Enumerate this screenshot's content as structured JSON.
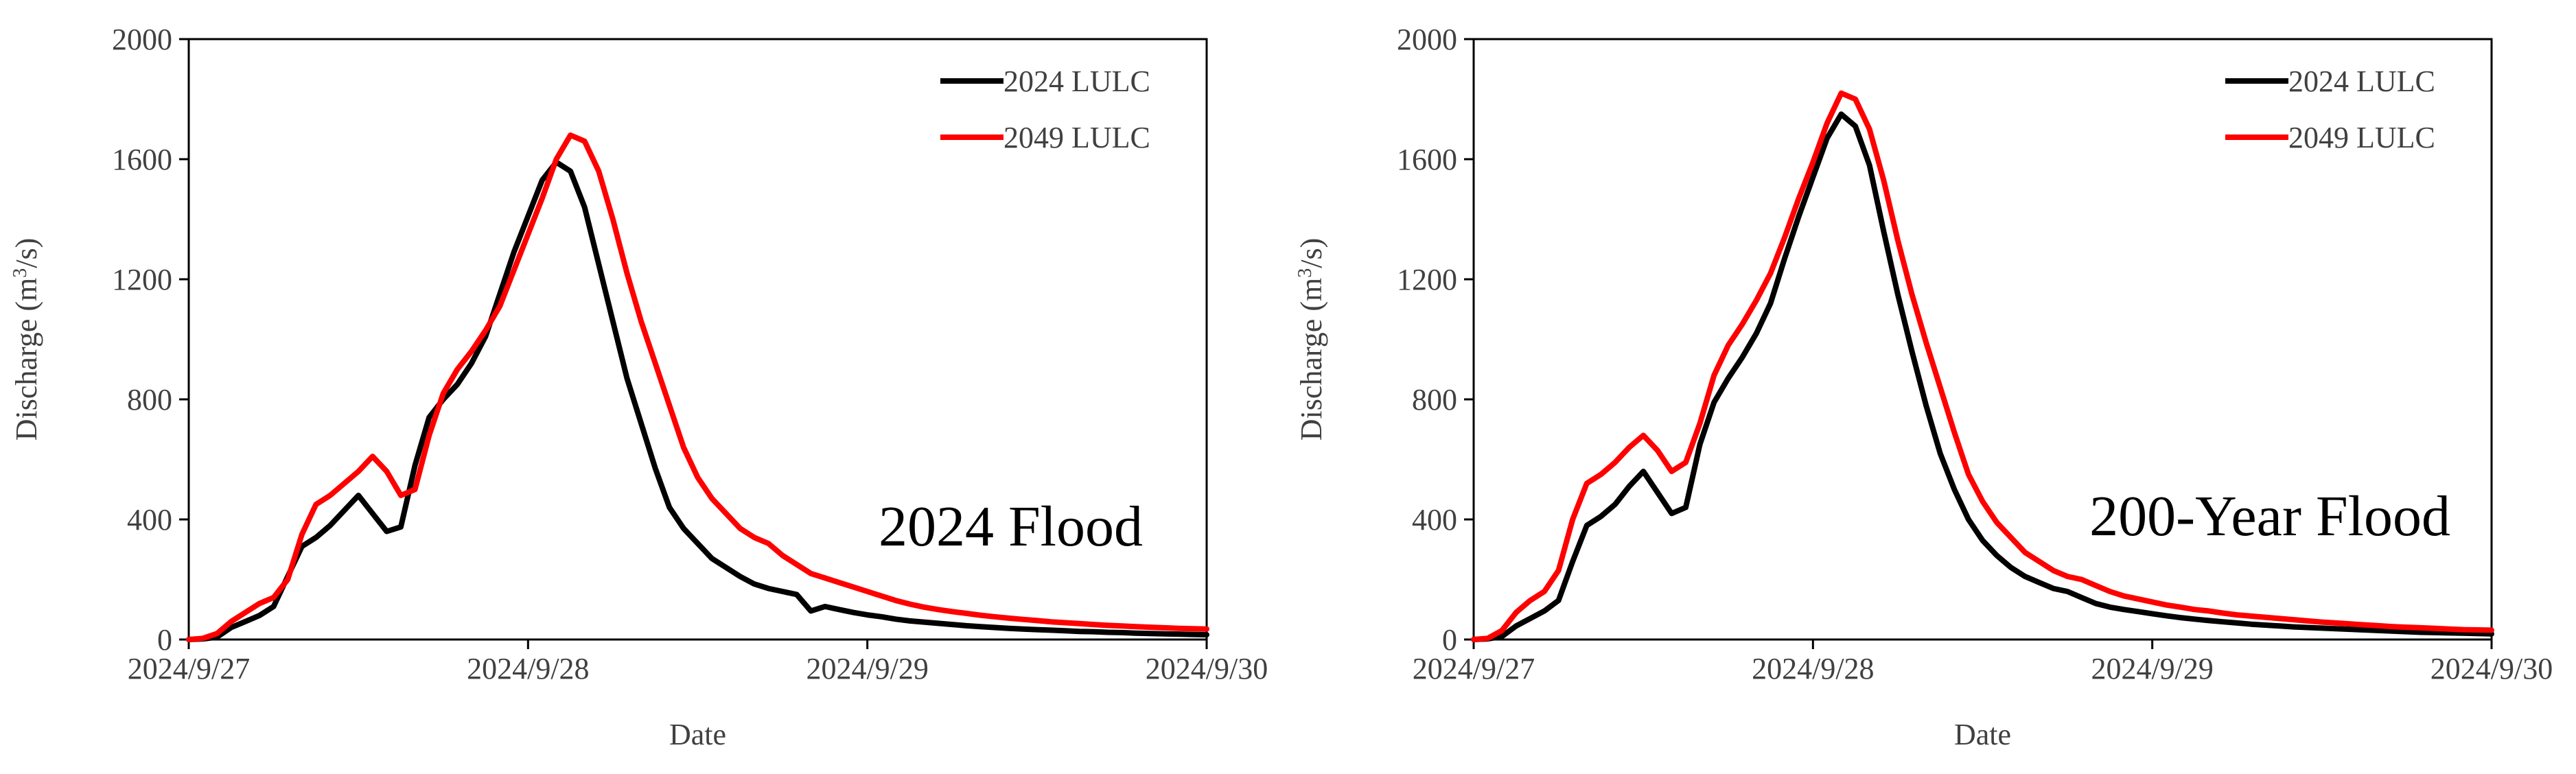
{
  "chart_data": [
    {
      "type": "line",
      "title": "",
      "annotation": "2024 Flood",
      "xlabel": "Date",
      "ylabel_main": "Discharge (m",
      "ylabel_sup": "3",
      "ylabel_end": "/s)",
      "xlim": [
        0,
        72
      ],
      "ylim": [
        0,
        2000
      ],
      "yticks": [
        0,
        400,
        800,
        1200,
        1600,
        2000
      ],
      "ytick_labels": [
        "0",
        "400",
        "800",
        "1200",
        "1600",
        "2000"
      ],
      "xticks": [
        0,
        24,
        48,
        72
      ],
      "xtick_labels": [
        "2024/9/27",
        "2024/9/28",
        "2024/9/29",
        "2024/9/30"
      ],
      "legend_position": "top-right",
      "x_hours": [
        0,
        1,
        2,
        3,
        4,
        5,
        6,
        7,
        8,
        9,
        10,
        11,
        12,
        13,
        14,
        15,
        16,
        17,
        18,
        19,
        20,
        21,
        22,
        23,
        24,
        25,
        26,
        27,
        28,
        29,
        30,
        31,
        32,
        33,
        34,
        35,
        36,
        37,
        38,
        39,
        40,
        41,
        42,
        43,
        44,
        45,
        46,
        47,
        48,
        49,
        50,
        51,
        52,
        53,
        54,
        55,
        56,
        57,
        58,
        59,
        60,
        61,
        62,
        63,
        64,
        65,
        66,
        67,
        68,
        69,
        70,
        71,
        72
      ],
      "series": [
        {
          "name": "2024 LULC",
          "color": "#000000",
          "values": [
            0,
            2,
            8,
            40,
            60,
            80,
            110,
            210,
            310,
            340,
            380,
            430,
            480,
            420,
            360,
            375,
            580,
            740,
            800,
            850,
            920,
            1010,
            1150,
            1290,
            1410,
            1530,
            1590,
            1560,
            1440,
            1250,
            1060,
            870,
            720,
            570,
            440,
            370,
            320,
            270,
            240,
            210,
            185,
            170,
            160,
            150,
            95,
            110,
            100,
            90,
            82,
            76,
            68,
            62,
            58,
            54,
            50,
            46,
            43,
            40,
            37,
            35,
            33,
            31,
            29,
            27,
            26,
            24,
            23,
            21,
            20,
            19,
            18,
            17,
            16
          ]
        },
        {
          "name": "2049 LULC",
          "color": "#ff0000",
          "values": [
            0,
            4,
            20,
            60,
            90,
            120,
            140,
            200,
            350,
            450,
            480,
            520,
            560,
            610,
            560,
            480,
            500,
            680,
            820,
            900,
            960,
            1030,
            1110,
            1230,
            1350,
            1470,
            1600,
            1680,
            1660,
            1560,
            1400,
            1220,
            1060,
            920,
            780,
            640,
            540,
            470,
            420,
            370,
            340,
            320,
            280,
            250,
            220,
            205,
            190,
            175,
            160,
            145,
            130,
            118,
            108,
            100,
            93,
            87,
            81,
            76,
            71,
            67,
            63,
            59,
            56,
            53,
            50,
            47,
            45,
            43,
            41,
            39,
            37,
            36,
            35
          ]
        }
      ]
    },
    {
      "type": "line",
      "title": "",
      "annotation": "200-Year Flood",
      "xlabel": "Date",
      "ylabel_main": "Discharge (m",
      "ylabel_sup": "3",
      "ylabel_end": "/s)",
      "xlim": [
        0,
        72
      ],
      "ylim": [
        0,
        2000
      ],
      "yticks": [
        0,
        400,
        800,
        1200,
        1600,
        2000
      ],
      "ytick_labels": [
        "0",
        "400",
        "800",
        "1200",
        "1600",
        "2000"
      ],
      "xticks": [
        0,
        24,
        48,
        72
      ],
      "xtick_labels": [
        "2024/9/27",
        "2024/9/28",
        "2024/9/29",
        "2024/9/30"
      ],
      "legend_position": "top-right",
      "x_hours": [
        0,
        1,
        2,
        3,
        4,
        5,
        6,
        7,
        8,
        9,
        10,
        11,
        12,
        13,
        14,
        15,
        16,
        17,
        18,
        19,
        20,
        21,
        22,
        23,
        24,
        25,
        26,
        27,
        28,
        29,
        30,
        31,
        32,
        33,
        34,
        35,
        36,
        37,
        38,
        39,
        40,
        41,
        42,
        43,
        44,
        45,
        46,
        47,
        48,
        49,
        50,
        51,
        52,
        53,
        54,
        55,
        56,
        57,
        58,
        59,
        60,
        61,
        62,
        63,
        64,
        65,
        66,
        67,
        68,
        69,
        70,
        71,
        72
      ],
      "series": [
        {
          "name": "2024 LULC",
          "color": "#000000",
          "values": [
            0,
            2,
            10,
            45,
            70,
            95,
            130,
            260,
            380,
            410,
            450,
            510,
            560,
            490,
            420,
            440,
            650,
            790,
            870,
            940,
            1020,
            1120,
            1270,
            1410,
            1540,
            1670,
            1750,
            1710,
            1580,
            1360,
            1150,
            960,
            780,
            620,
            500,
            400,
            330,
            280,
            240,
            210,
            190,
            170,
            160,
            140,
            120,
            108,
            100,
            93,
            86,
            79,
            73,
            68,
            63,
            59,
            55,
            51,
            48,
            45,
            42,
            40,
            38,
            36,
            34,
            32,
            30,
            28,
            26,
            24,
            23,
            22,
            21,
            20,
            19
          ]
        },
        {
          "name": "2049 LULC",
          "color": "#ff0000",
          "values": [
            0,
            4,
            30,
            90,
            130,
            160,
            230,
            400,
            520,
            550,
            590,
            640,
            680,
            630,
            560,
            590,
            720,
            880,
            980,
            1050,
            1130,
            1220,
            1340,
            1470,
            1590,
            1720,
            1820,
            1800,
            1700,
            1530,
            1330,
            1150,
            990,
            840,
            690,
            550,
            460,
            390,
            340,
            290,
            260,
            230,
            210,
            200,
            180,
            160,
            145,
            135,
            125,
            115,
            108,
            100,
            95,
            88,
            82,
            78,
            74,
            70,
            66,
            62,
            58,
            55,
            52,
            49,
            46,
            43,
            41,
            39,
            37,
            35,
            33,
            32,
            31
          ]
        }
      ]
    }
  ]
}
